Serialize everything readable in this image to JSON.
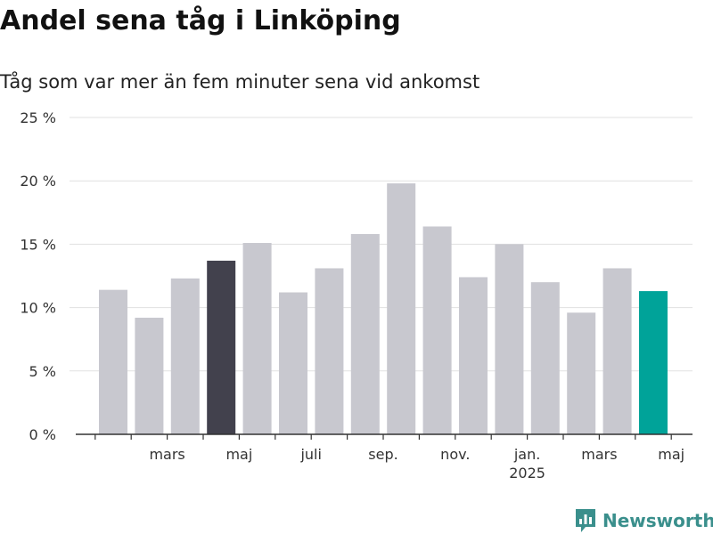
{
  "title": "Andel sena tåg i Linköping",
  "subtitle": "Tåg som var mer än fem minuter sena vid ankomst",
  "logo": {
    "text": "Newsworthy",
    "icon": "newsworthy-chart-icon",
    "color": "#3a8f8c"
  },
  "chart_data": {
    "type": "bar",
    "title": "Andel sena tåg i Linköping",
    "subtitle": "Tåg som var mer än fem minuter sena vid ankomst",
    "xlabel": "",
    "ylabel": "",
    "ylim": [
      0,
      25
    ],
    "yticks": [
      0,
      5,
      10,
      15,
      20,
      25
    ],
    "ytick_labels": [
      "0 %",
      "5 %",
      "10 %",
      "15 %",
      "20 %",
      "25 %"
    ],
    "grid": true,
    "values": [
      11.4,
      9.2,
      12.3,
      13.7,
      15.1,
      11.2,
      13.1,
      15.8,
      19.8,
      16.4,
      12.4,
      15.0,
      12.0,
      9.6,
      13.1,
      11.3
    ],
    "xticks": [
      {
        "bar_index": 1.5,
        "label": "mars",
        "sublabel": ""
      },
      {
        "bar_index": 3.5,
        "label": "maj",
        "sublabel": ""
      },
      {
        "bar_index": 5.5,
        "label": "juli",
        "sublabel": ""
      },
      {
        "bar_index": 7.5,
        "label": "sep.",
        "sublabel": ""
      },
      {
        "bar_index": 9.5,
        "label": "nov.",
        "sublabel": ""
      },
      {
        "bar_index": 11.5,
        "label": "jan.",
        "sublabel": "2025"
      },
      {
        "bar_index": 13.5,
        "label": "mars",
        "sublabel": ""
      },
      {
        "bar_index": 15.5,
        "label": "maj",
        "sublabel": ""
      }
    ],
    "colors": {
      "default": "#c8c8cf",
      "highlight_dark": "#42414d",
      "highlight_teal": "#00a399"
    },
    "bar_colors": [
      "default",
      "default",
      "default",
      "highlight_dark",
      "default",
      "default",
      "default",
      "default",
      "default",
      "default",
      "default",
      "default",
      "default",
      "default",
      "default",
      "highlight_teal"
    ]
  }
}
